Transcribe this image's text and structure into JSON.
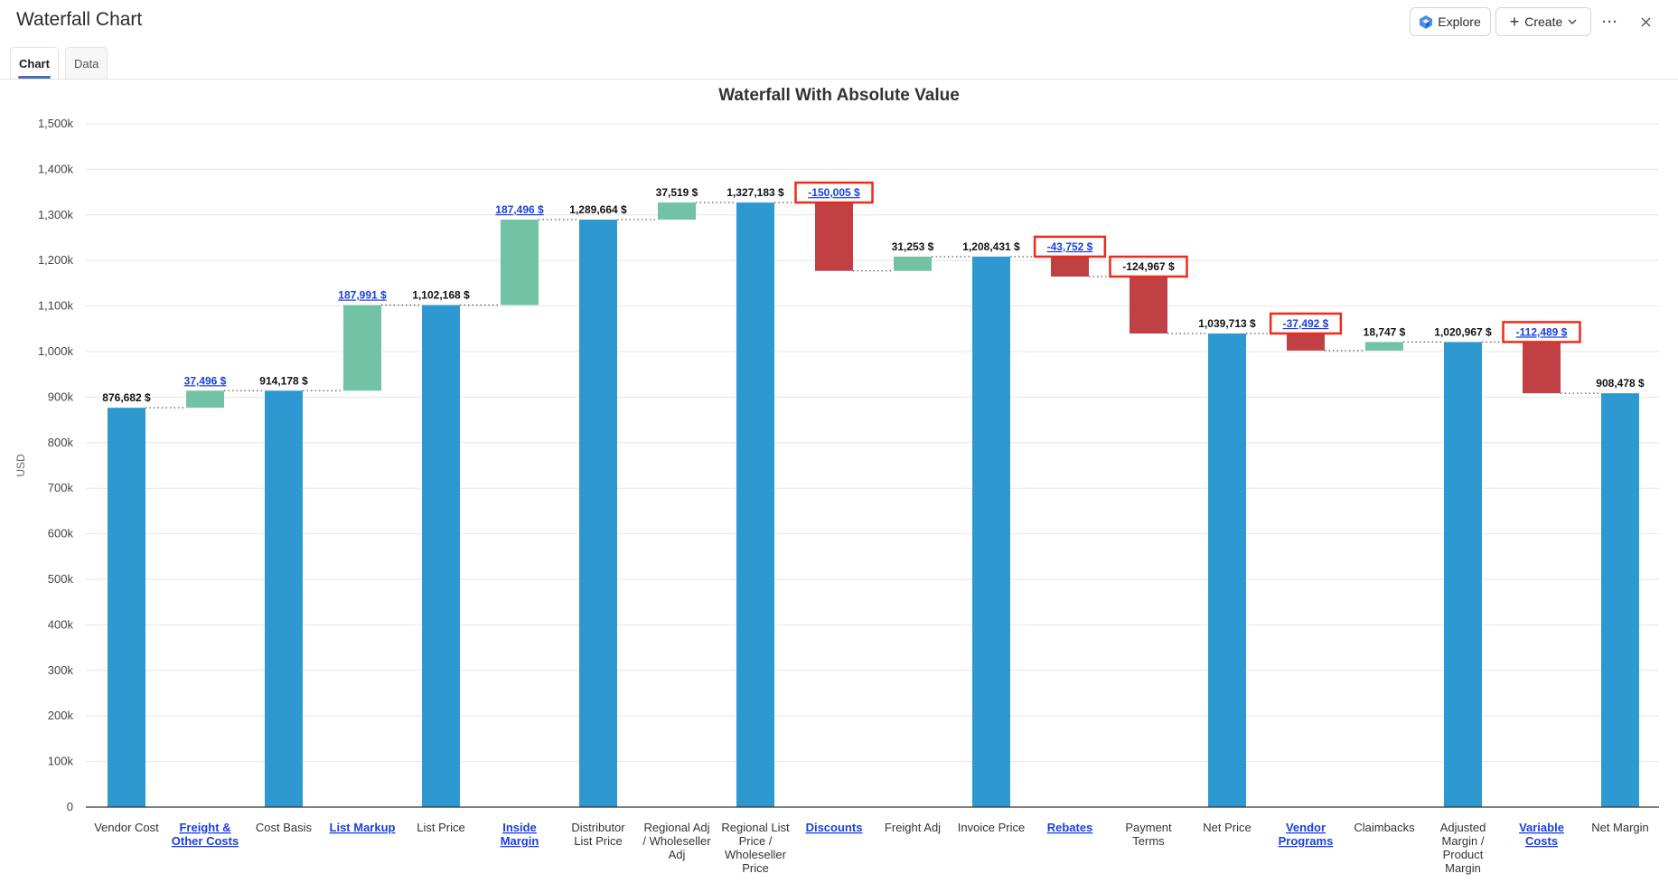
{
  "header": {
    "title": "Waterfall Chart",
    "explore_label": "Explore",
    "create_label": "Create",
    "more_icon": "more-horizontal-icon",
    "close_icon": "close-icon"
  },
  "tabs": [
    {
      "label": "Chart",
      "active": true
    },
    {
      "label": "Data",
      "active": false
    }
  ],
  "colors": {
    "total": "#2e99d1",
    "increase": "#72c2a6",
    "decrease": "#c04044",
    "link": "#1a3fe0",
    "highlight_box": "#f02a1a",
    "tab_underline": "#4a6fb5"
  },
  "chart_data": {
    "type": "bar",
    "subtype": "waterfall",
    "title": "Waterfall With Absolute Value",
    "xlabel": "",
    "ylabel": "USD",
    "ylim": [
      0,
      1500000
    ],
    "yticks": [
      "0",
      "100k",
      "200k",
      "300k",
      "400k",
      "500k",
      "600k",
      "700k",
      "800k",
      "900k",
      "1,000k",
      "1,100k",
      "1,200k",
      "1,300k",
      "1,400k",
      "1,500k"
    ],
    "grid": true,
    "legend": null,
    "categories": [
      "Vendor Cost",
      "Freight & Other Costs",
      "Cost Basis",
      "List Markup",
      "List Price",
      "Inside Margin",
      "Distributor List Price",
      "Regional Adj / Wholeseller Adj",
      "Regional List Price / Wholeseller Price",
      "Discounts",
      "Freight Adj",
      "Invoice Price",
      "Rebates",
      "Payment Terms",
      "Net Price",
      "Vendor Programs",
      "Claimbacks",
      "Adjusted Margin / Product Margin",
      "Variable Costs",
      "Net Margin"
    ],
    "bars": [
      {
        "label": "Vendor Cost",
        "kind": "total",
        "value": 876682,
        "start": 0,
        "end": 876682,
        "value_label": "876,682 $",
        "link": false,
        "boxed": false
      },
      {
        "label": "Freight & Other Costs",
        "kind": "increase",
        "value": 37496,
        "start": 876682,
        "end": 914178,
        "value_label": "37,496 $",
        "link": true,
        "boxed": false
      },
      {
        "label": "Cost Basis",
        "kind": "total",
        "value": 914178,
        "start": 0,
        "end": 914178,
        "value_label": "914,178 $",
        "link": false,
        "boxed": false
      },
      {
        "label": "List Markup",
        "kind": "increase",
        "value": 187991,
        "start": 914178,
        "end": 1102168,
        "value_label": "187,991 $",
        "link": true,
        "boxed": false
      },
      {
        "label": "List Price",
        "kind": "total",
        "value": 1102168,
        "start": 0,
        "end": 1102168,
        "value_label": "1,102,168 $",
        "link": false,
        "boxed": false
      },
      {
        "label": "Inside Margin",
        "kind": "increase",
        "value": 187496,
        "start": 1102168,
        "end": 1289664,
        "value_label": "187,496 $",
        "link": true,
        "boxed": false
      },
      {
        "label": "Distributor List Price",
        "kind": "total",
        "value": 1289664,
        "start": 0,
        "end": 1289664,
        "value_label": "1,289,664 $",
        "link": false,
        "boxed": false
      },
      {
        "label": "Regional Adj / Wholeseller Adj",
        "kind": "increase",
        "value": 37519,
        "start": 1289664,
        "end": 1327183,
        "value_label": "37,519 $",
        "link": false,
        "boxed": false
      },
      {
        "label": "Regional List Price / Wholeseller Price",
        "kind": "total",
        "value": 1327183,
        "start": 0,
        "end": 1327183,
        "value_label": "1,327,183 $",
        "link": false,
        "boxed": false
      },
      {
        "label": "Discounts",
        "kind": "decrease",
        "value": -150005,
        "start": 1327183,
        "end": 1177178,
        "value_label": "-150,005 $",
        "link": true,
        "boxed": true
      },
      {
        "label": "Freight Adj",
        "kind": "increase",
        "value": 31253,
        "start": 1177178,
        "end": 1208431,
        "value_label": "31,253 $",
        "link": false,
        "boxed": false
      },
      {
        "label": "Invoice Price",
        "kind": "total",
        "value": 1208431,
        "start": 0,
        "end": 1208431,
        "value_label": "1,208,431 $",
        "link": false,
        "boxed": false
      },
      {
        "label": "Rebates",
        "kind": "decrease",
        "value": -43752,
        "start": 1208431,
        "end": 1164679,
        "value_label": "-43,752 $",
        "link": true,
        "boxed": true
      },
      {
        "label": "Payment Terms",
        "kind": "decrease",
        "value": -124967,
        "start": 1164679,
        "end": 1039713,
        "value_label": "-124,967 $",
        "link": false,
        "boxed": true
      },
      {
        "label": "Net Price",
        "kind": "total",
        "value": 1039713,
        "start": 0,
        "end": 1039713,
        "value_label": "1,039,713 $",
        "link": false,
        "boxed": false
      },
      {
        "label": "Vendor Programs",
        "kind": "decrease",
        "value": -37492,
        "start": 1039713,
        "end": 1002221,
        "value_label": "-37,492 $",
        "link": true,
        "boxed": true
      },
      {
        "label": "Claimbacks",
        "kind": "increase",
        "value": 18747,
        "start": 1002221,
        "end": 1020967,
        "value_label": "18,747 $",
        "link": false,
        "boxed": false
      },
      {
        "label": "Adjusted Margin / Product Margin",
        "kind": "total",
        "value": 1020967,
        "start": 0,
        "end": 1020967,
        "value_label": "1,020,967 $",
        "link": false,
        "boxed": false
      },
      {
        "label": "Variable Costs",
        "kind": "decrease",
        "value": -112489,
        "start": 1020967,
        "end": 908478,
        "value_label": "-112,489 $",
        "link": true,
        "boxed": true
      },
      {
        "label": "Net Margin",
        "kind": "total",
        "value": 908478,
        "start": 0,
        "end": 908478,
        "value_label": "908,478 $",
        "link": false,
        "boxed": false
      }
    ],
    "x_label_lines": [
      [
        "Vendor Cost"
      ],
      [
        "Freight &",
        "Other Costs"
      ],
      [
        "Cost Basis"
      ],
      [
        "List Markup"
      ],
      [
        "List Price"
      ],
      [
        "Inside",
        "Margin"
      ],
      [
        "Distributor",
        "List Price"
      ],
      [
        "Regional Adj",
        "/ Wholeseller",
        "Adj"
      ],
      [
        "Regional List",
        "Price /",
        "Wholeseller",
        "Price"
      ],
      [
        "Discounts"
      ],
      [
        "Freight Adj"
      ],
      [
        "Invoice Price"
      ],
      [
        "Rebates"
      ],
      [
        "Payment",
        "Terms"
      ],
      [
        "Net Price"
      ],
      [
        "Vendor",
        "Programs"
      ],
      [
        "Claimbacks"
      ],
      [
        "Adjusted",
        "Margin /",
        "Product",
        "Margin"
      ],
      [
        "Variable",
        "Costs"
      ],
      [
        "Net Margin"
      ]
    ]
  }
}
